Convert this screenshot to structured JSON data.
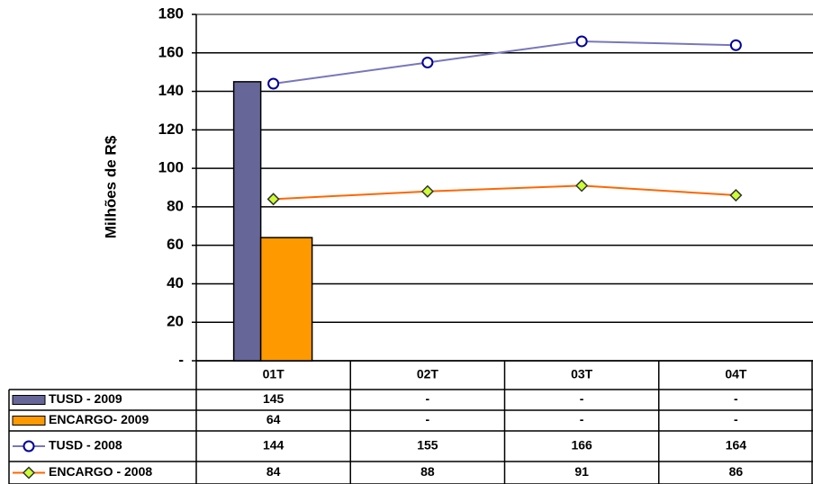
{
  "chart_data": {
    "type": "combo",
    "y_label": "Milhões de R$",
    "categories": [
      "01T",
      "02T",
      "03T",
      "04T"
    ],
    "ylim": [
      0,
      180
    ],
    "yticks": [
      {
        "value": 0,
        "label": "-"
      },
      20,
      40,
      60,
      80,
      100,
      120,
      140,
      160,
      180
    ],
    "grid": true,
    "series": [
      {
        "name": "TUSD - 2009",
        "type": "bar",
        "color": "#666699",
        "values": [
          145,
          null,
          null,
          null
        ],
        "value_labels": [
          "145",
          "-",
          "-",
          "-"
        ]
      },
      {
        "name": "ENCARGO- 2009",
        "type": "bar",
        "color": "#ff9900",
        "values": [
          64,
          null,
          null,
          null
        ],
        "value_labels": [
          "64",
          "-",
          "-",
          "-"
        ]
      },
      {
        "name": "TUSD - 2008",
        "type": "line",
        "color": "#7777bb",
        "marker": "circle",
        "marker_color": "#ffffff",
        "values": [
          144,
          155,
          166,
          164
        ]
      },
      {
        "name": "ENCARGO - 2008",
        "type": "line",
        "color": "#ff6600",
        "marker": "diamond",
        "marker_color": "#ccff33",
        "values": [
          84,
          88,
          91,
          86
        ]
      }
    ]
  }
}
